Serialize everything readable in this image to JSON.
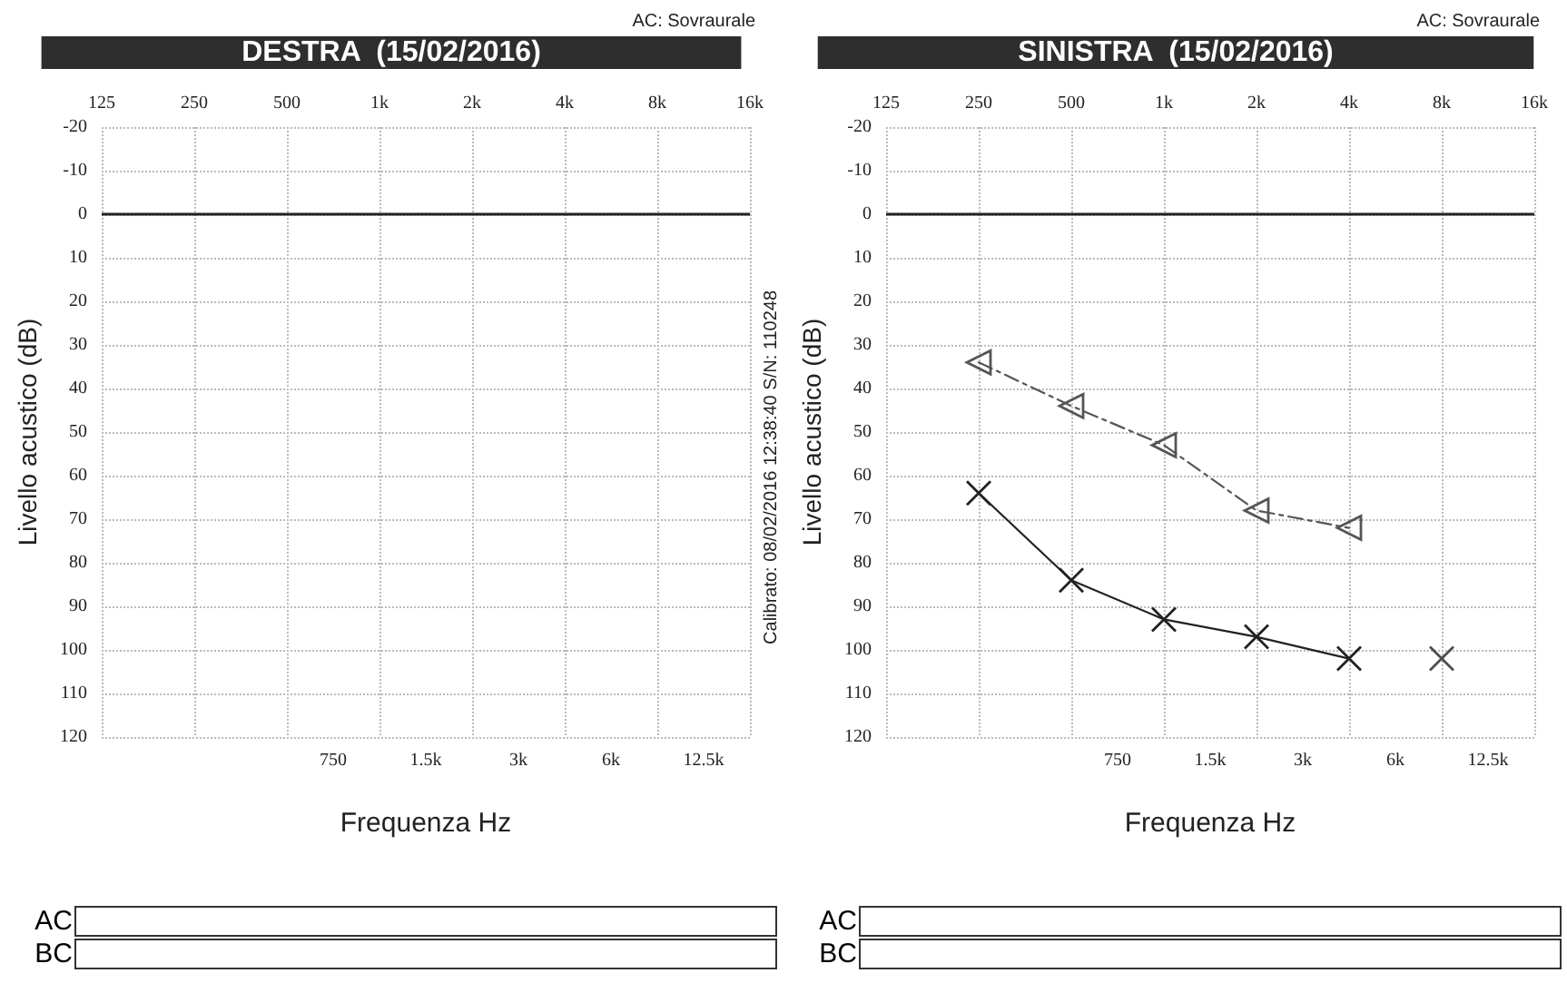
{
  "chart_data": [
    {
      "type": "line",
      "title": "DESTRA  (15/02/2016)",
      "subtitle": "AC: Sovraurale",
      "xlabel": "Frequenza Hz",
      "ylabel": "Livello acustico (dB)",
      "categories": [
        "125",
        null,
        "250",
        null,
        "500",
        "750",
        "1k",
        "1.5k",
        "2k",
        "3k",
        "4k",
        "6k",
        "8k",
        "12.5k",
        "16k"
      ],
      "ylim": [
        120,
        -20
      ],
      "yticks": [
        -20,
        -10,
        0,
        10,
        20,
        30,
        40,
        50,
        60,
        70,
        80,
        90,
        100,
        110,
        120
      ],
      "grid": true,
      "ref_lines": [
        {
          "axis": "y",
          "value": 0,
          "color": "#222222",
          "line_style": "solid"
        }
      ],
      "annotations": [
        "Calibrato: 08/02/2016 12:38:40 S/N: 110248",
        "AC",
        "BC"
      ]
    },
    {
      "type": "line",
      "title": "SINISTRA  (15/02/2016)",
      "subtitle": "AC: Sovraurale",
      "xlabel": "Frequenza Hz",
      "ylabel": "Livello acustico (dB)",
      "categories": [
        "125",
        null,
        "250",
        null,
        "500",
        "750",
        "1k",
        "1.5k",
        "2k",
        "3k",
        "4k",
        "6k",
        "8k",
        "12.5k",
        "16k"
      ],
      "ylim": [
        120,
        -20
      ],
      "yticks": [
        -20,
        -10,
        0,
        10,
        20,
        30,
        40,
        50,
        60,
        70,
        80,
        90,
        100,
        110,
        120
      ],
      "grid": true,
      "ref_lines": [
        {
          "axis": "y",
          "value": 0,
          "color": "#222222",
          "line_style": "solid"
        }
      ],
      "series": [
        {
          "type": "line",
          "color": "#222222",
          "marker": "cross",
          "line_style": "solid",
          "x": [
            "250",
            "500",
            "1k",
            "2k",
            "4k"
          ],
          "values": [
            64,
            84,
            93,
            97,
            102
          ]
        },
        {
          "type": "scatter",
          "color": "#222222",
          "marker": "cross",
          "x": [
            "8k"
          ],
          "values": [
            102
          ]
        },
        {
          "type": "line",
          "color": "#555555",
          "marker": "triangle",
          "line_style": "dashed",
          "x": [
            "250",
            "500",
            "1k",
            "2k",
            "4k"
          ],
          "values": [
            34,
            44,
            53,
            68,
            72
          ]
        }
      ],
      "annotations": [
        "AC",
        "BC"
      ]
    }
  ]
}
